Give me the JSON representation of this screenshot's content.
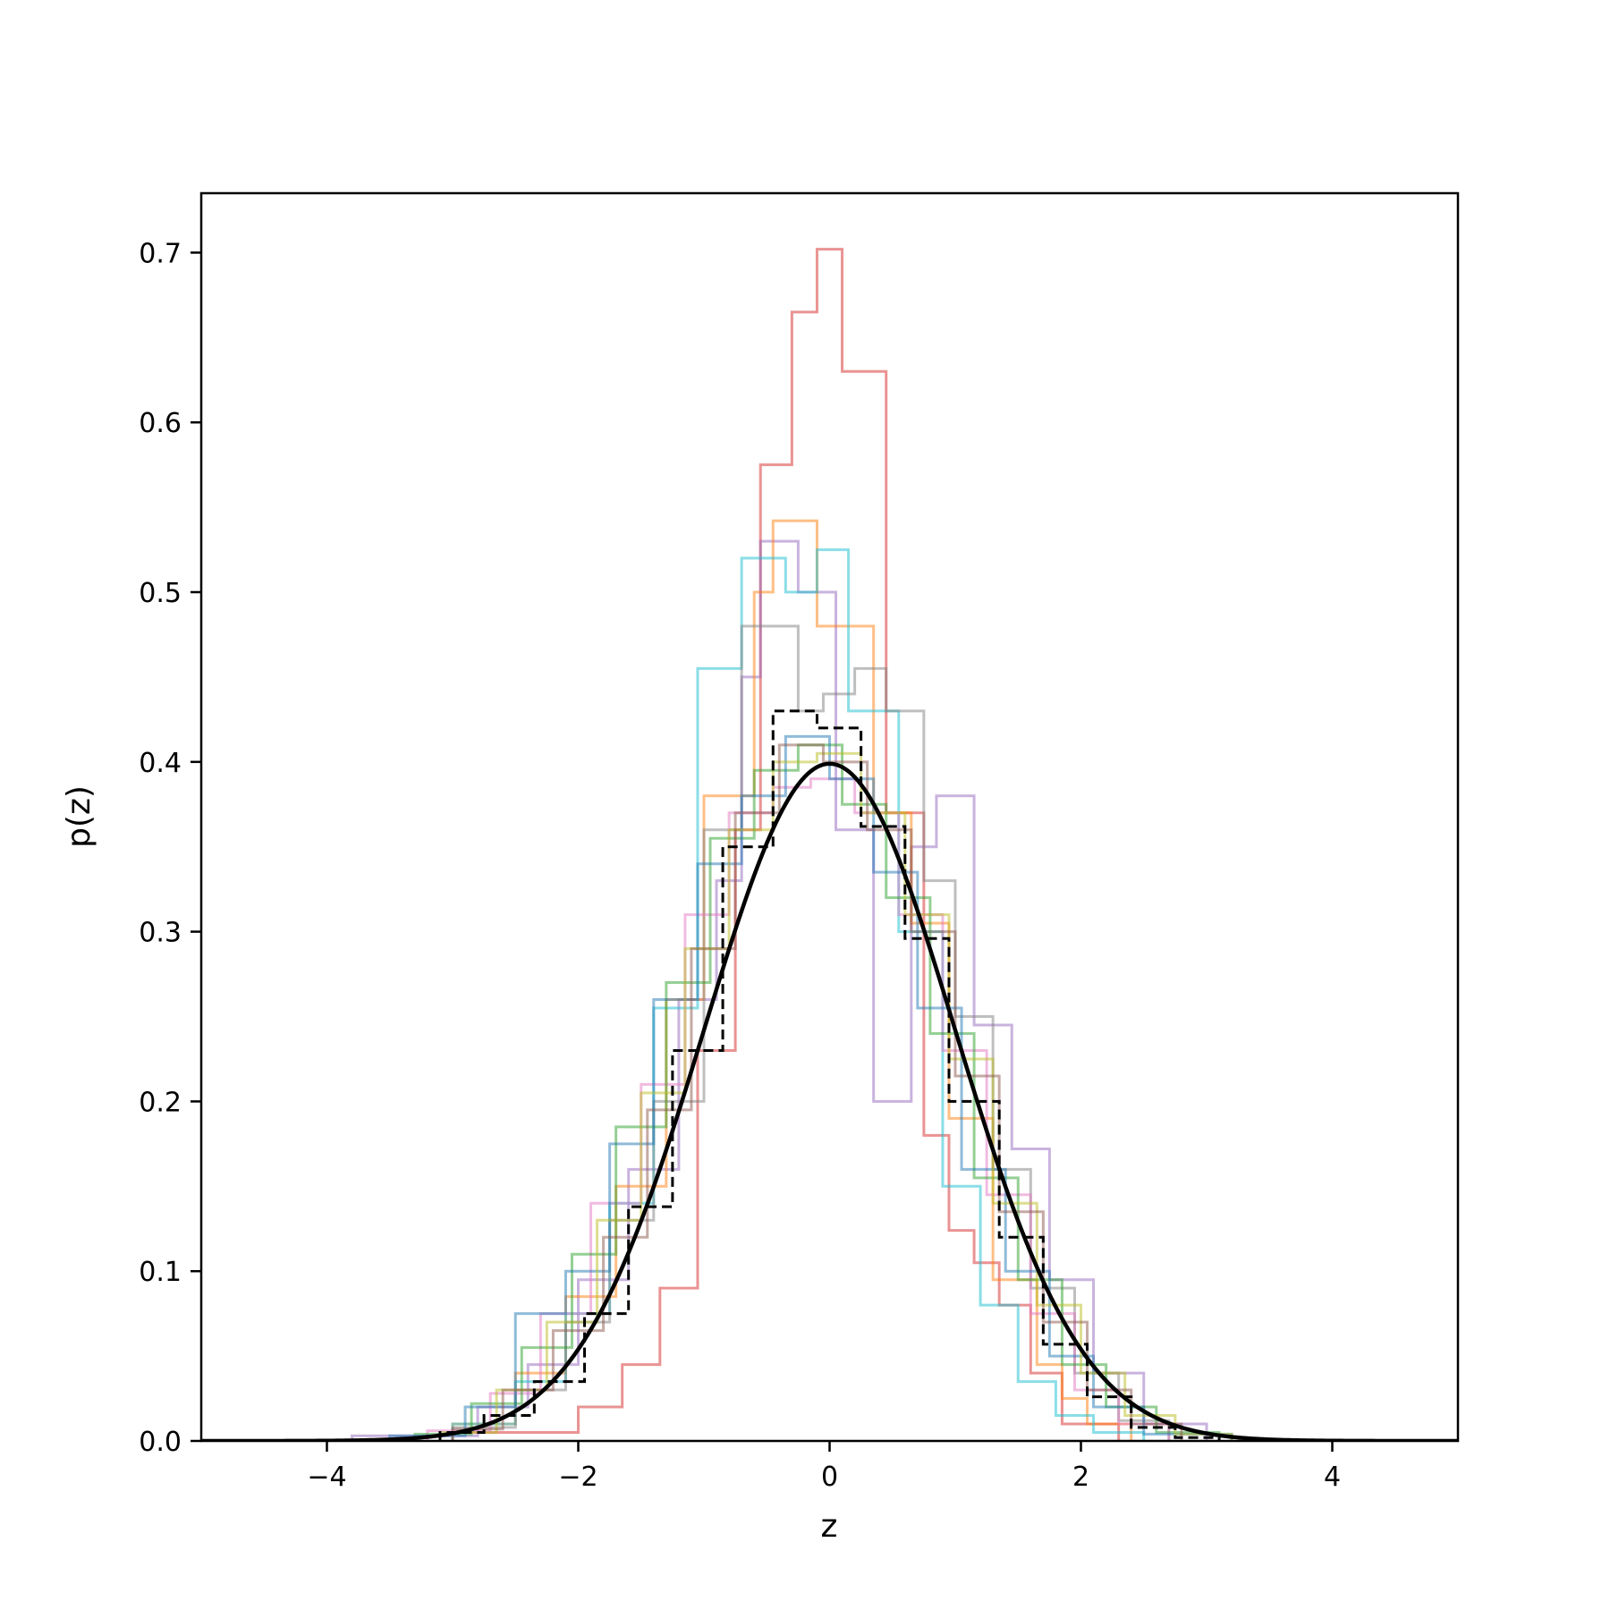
{
  "chart_data": {
    "type": "line",
    "title": "",
    "xlabel": "z",
    "ylabel": "p(z)",
    "xlim": [
      -5,
      5
    ],
    "ylim": [
      0,
      0.735
    ],
    "grid": false,
    "legend": "none",
    "x_ticks": [
      -4,
      -2,
      0,
      2,
      4
    ],
    "x_tick_labels": [
      "−4",
      "−2",
      "0",
      "2",
      "4"
    ],
    "y_ticks": [
      0.0,
      0.1,
      0.2,
      0.3,
      0.4,
      0.5,
      0.6,
      0.7
    ],
    "y_tick_labels": [
      "0.0",
      "0.1",
      "0.2",
      "0.3",
      "0.4",
      "0.5",
      "0.6",
      "0.7"
    ],
    "reference_curve": {
      "style": "solid",
      "color": "#000000",
      "distribution": "standard normal density",
      "mean": 0,
      "std": 1,
      "x_range": [
        -5,
        5
      ]
    },
    "reference_histogram": {
      "style": "dashed",
      "color": "#000000",
      "bin_edges": [
        -3.1,
        -2.75,
        -2.35,
        -1.95,
        -1.6,
        -1.25,
        -0.85,
        -0.45,
        -0.1,
        0.25,
        0.6,
        0.95,
        1.35,
        1.7,
        2.05,
        2.4,
        2.75,
        3.1
      ],
      "heights": [
        0.005,
        0.015,
        0.035,
        0.075,
        0.138,
        0.23,
        0.35,
        0.43,
        0.42,
        0.362,
        0.296,
        0.2,
        0.12,
        0.057,
        0.026,
        0.008,
        0.002
      ]
    },
    "sample_histograms": [
      {
        "color": "#d62728",
        "bin_edges": [
          -3.0,
          -2.0,
          -1.65,
          -1.35,
          -1.05,
          -0.75,
          -0.55,
          -0.3,
          -0.1,
          0.1,
          0.45,
          0.75,
          0.95,
          1.15,
          1.35,
          1.6,
          1.85,
          2.3
        ],
        "heights": [
          0.005,
          0.02,
          0.045,
          0.09,
          0.23,
          0.36,
          0.575,
          0.665,
          0.702,
          0.63,
          0.37,
          0.18,
          0.124,
          0.105,
          0.08,
          0.04,
          0.01
        ]
      },
      {
        "color": "#9467bd",
        "bin_edges": [
          -3.8,
          -2.8,
          -2.4,
          -2.0,
          -1.6,
          -1.2,
          -0.9,
          -0.7,
          -0.55,
          -0.25,
          0.05,
          0.35,
          0.65,
          0.85,
          1.15,
          1.45,
          1.75,
          2.1,
          2.5,
          3.0
        ],
        "heights": [
          0.003,
          0.02,
          0.045,
          0.095,
          0.16,
          0.26,
          0.33,
          0.45,
          0.53,
          0.5,
          0.36,
          0.2,
          0.35,
          0.38,
          0.245,
          0.172,
          0.095,
          0.04,
          0.01
        ]
      },
      {
        "color": "#ff7f0e",
        "bin_edges": [
          -3.0,
          -2.5,
          -2.1,
          -1.7,
          -1.3,
          -1.0,
          -0.6,
          -0.45,
          -0.1,
          0.35,
          0.65,
          0.95,
          1.3,
          1.65,
          1.85,
          2.05,
          2.4
        ],
        "heights": [
          0.01,
          0.04,
          0.085,
          0.15,
          0.26,
          0.38,
          0.5,
          0.542,
          0.48,
          0.37,
          0.305,
          0.19,
          0.095,
          0.045,
          0.025,
          0.01
        ]
      },
      {
        "color": "#17becf",
        "bin_edges": [
          -3.0,
          -2.5,
          -2.1,
          -1.75,
          -1.4,
          -1.05,
          -0.7,
          -0.35,
          -0.1,
          0.15,
          0.55,
          0.9,
          1.2,
          1.5,
          1.8,
          2.1,
          2.5
        ],
        "heights": [
          0.01,
          0.035,
          0.075,
          0.14,
          0.255,
          0.455,
          0.52,
          0.5,
          0.525,
          0.43,
          0.3,
          0.15,
          0.08,
          0.035,
          0.015,
          0.005
        ]
      },
      {
        "color": "#7f7f7f",
        "bin_edges": [
          -3.0,
          -2.5,
          -2.1,
          -1.75,
          -1.4,
          -1.0,
          -0.7,
          -0.25,
          -0.05,
          0.2,
          0.45,
          0.75,
          1.0,
          1.3,
          1.6,
          1.95,
          2.3,
          2.7
        ],
        "heights": [
          0.008,
          0.03,
          0.07,
          0.13,
          0.2,
          0.36,
          0.48,
          0.43,
          0.44,
          0.455,
          0.43,
          0.33,
          0.25,
          0.16,
          0.09,
          0.04,
          0.012
        ]
      },
      {
        "color": "#e377c2",
        "bin_edges": [
          -3.2,
          -2.7,
          -2.3,
          -1.9,
          -1.5,
          -1.15,
          -0.8,
          -0.45,
          -0.15,
          0.2,
          0.55,
          0.9,
          1.25,
          1.6,
          1.95,
          2.3,
          2.7
        ],
        "heights": [
          0.006,
          0.028,
          0.075,
          0.14,
          0.21,
          0.31,
          0.37,
          0.385,
          0.39,
          0.37,
          0.31,
          0.23,
          0.145,
          0.075,
          0.03,
          0.01
        ]
      },
      {
        "color": "#2ca02c",
        "bin_edges": [
          -3.3,
          -2.85,
          -2.45,
          -2.05,
          -1.7,
          -1.3,
          -0.95,
          -0.6,
          -0.25,
          0.1,
          0.45,
          0.8,
          1.15,
          1.5,
          1.85,
          2.2,
          2.6,
          3.1
        ],
        "heights": [
          0.004,
          0.022,
          0.055,
          0.11,
          0.185,
          0.27,
          0.355,
          0.395,
          0.41,
          0.375,
          0.32,
          0.24,
          0.155,
          0.095,
          0.045,
          0.02,
          0.005
        ]
      },
      {
        "color": "#1f77b4",
        "bin_edges": [
          -3.5,
          -2.9,
          -2.5,
          -2.1,
          -1.75,
          -1.4,
          -1.05,
          -0.7,
          -0.35,
          0.0,
          0.35,
          0.7,
          1.05,
          1.4,
          1.75,
          2.1,
          2.5,
          3.2
        ],
        "heights": [
          0.003,
          0.02,
          0.075,
          0.1,
          0.175,
          0.26,
          0.34,
          0.38,
          0.415,
          0.39,
          0.335,
          0.255,
          0.16,
          0.1,
          0.05,
          0.02,
          0.004
        ]
      },
      {
        "color": "#bcbd22",
        "bin_edges": [
          -3.1,
          -2.65,
          -2.25,
          -1.85,
          -1.5,
          -1.15,
          -0.8,
          -0.45,
          -0.1,
          0.25,
          0.6,
          0.95,
          1.3,
          1.65,
          2.0,
          2.35,
          2.75,
          3.2
        ],
        "heights": [
          0.005,
          0.03,
          0.07,
          0.13,
          0.205,
          0.29,
          0.36,
          0.4,
          0.405,
          0.37,
          0.31,
          0.225,
          0.14,
          0.08,
          0.04,
          0.015,
          0.004
        ]
      },
      {
        "color": "#8c564b",
        "bin_edges": [
          -3.0,
          -2.6,
          -2.2,
          -1.8,
          -1.45,
          -1.1,
          -0.75,
          -0.4,
          -0.05,
          0.3,
          0.65,
          1.0,
          1.35,
          1.7,
          2.05,
          2.4,
          2.8
        ],
        "heights": [
          0.007,
          0.03,
          0.065,
          0.12,
          0.195,
          0.29,
          0.37,
          0.41,
          0.4,
          0.36,
          0.3,
          0.215,
          0.135,
          0.07,
          0.03,
          0.01
        ]
      }
    ]
  }
}
